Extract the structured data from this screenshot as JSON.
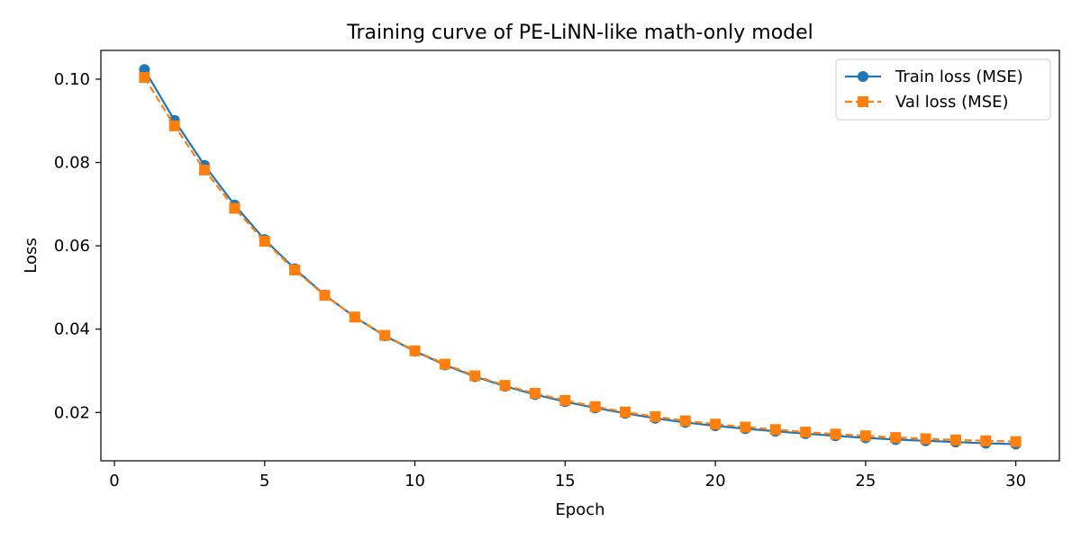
{
  "chart_data": {
    "type": "line",
    "title": "Training curve of PE-LiNN-like math-only model",
    "xlabel": "Epoch",
    "ylabel": "Loss",
    "xlim": [
      -0.45,
      31.45
    ],
    "ylim": [
      0.0084,
      0.1069
    ],
    "xticks": [
      0,
      5,
      10,
      15,
      20,
      25,
      30
    ],
    "yticks": [
      0.02,
      0.04,
      0.06,
      0.08,
      0.1
    ],
    "ytick_labels": [
      "0.02",
      "0.04",
      "0.06",
      "0.08",
      "0.10"
    ],
    "grid": false,
    "legend_position": "top-right",
    "x": [
      1,
      2,
      3,
      4,
      5,
      6,
      7,
      8,
      9,
      10,
      11,
      12,
      13,
      14,
      15,
      16,
      17,
      18,
      19,
      20,
      21,
      22,
      23,
      24,
      25,
      26,
      27,
      28,
      29,
      30
    ],
    "series": [
      {
        "name": "Train loss (MSE)",
        "color": "#1f77b4",
        "marker": "circle",
        "linestyle": "solid",
        "values": [
          0.1023,
          0.0901,
          0.0793,
          0.0698,
          0.0615,
          0.0545,
          0.0482,
          0.0429,
          0.0384,
          0.0347,
          0.0314,
          0.0286,
          0.0263,
          0.0243,
          0.0226,
          0.0211,
          0.0198,
          0.0186,
          0.0176,
          0.0168,
          0.0161,
          0.0155,
          0.0149,
          0.0144,
          0.0139,
          0.0135,
          0.0132,
          0.0129,
          0.0126,
          0.0124
        ]
      },
      {
        "name": "Val loss (MSE)",
        "color": "#ff7f0e",
        "marker": "square",
        "linestyle": "dashed",
        "values": [
          0.1004,
          0.0888,
          0.0782,
          0.069,
          0.0611,
          0.0542,
          0.0481,
          0.0429,
          0.0385,
          0.0348,
          0.0316,
          0.0288,
          0.0265,
          0.0246,
          0.0229,
          0.0214,
          0.0201,
          0.019,
          0.018,
          0.0172,
          0.0165,
          0.0159,
          0.0153,
          0.0148,
          0.0144,
          0.014,
          0.0137,
          0.0134,
          0.0132,
          0.013
        ]
      }
    ]
  }
}
